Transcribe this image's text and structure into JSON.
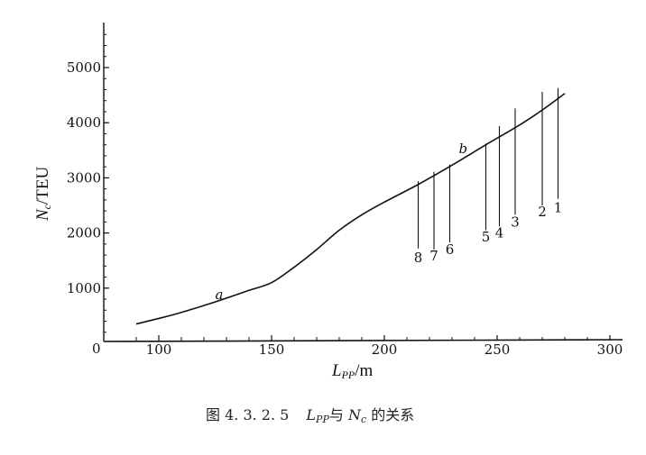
{
  "chart_data": {
    "type": "line",
    "caption_prefix": "图 4. 3. 2. 5",
    "caption_lpp": "L",
    "caption_lpp_sub": "PP",
    "caption_mid": "与",
    "caption_nc": "N",
    "caption_nc_sub": "c",
    "caption_suffix": "的关系",
    "xlabel_main": "L",
    "xlabel_sub": "PP",
    "xlabel_unit": "/m",
    "ylabel_main": "N",
    "ylabel_sub": "c",
    "ylabel_unit": "/TEU",
    "origin_label": "0",
    "xticks": [
      "100",
      "150",
      "200",
      "250",
      "300"
    ],
    "xtick_values": [
      100,
      150,
      200,
      250,
      300
    ],
    "yticks": [
      "1000",
      "2000",
      "3000",
      "4000",
      "5000"
    ],
    "ytick_values": [
      1000,
      2000,
      3000,
      4000,
      5000
    ],
    "xlim": [
      80,
      310
    ],
    "ylim": [
      0,
      5800
    ],
    "grid": false,
    "series": [
      {
        "name": "curve",
        "x": [
          90,
          100,
          110,
          125,
          140,
          150,
          160,
          170,
          180,
          190,
          200,
          215,
          230,
          245,
          260,
          270,
          280
        ],
        "y": [
          350,
          450,
          560,
          750,
          960,
          1100,
          1380,
          1700,
          2050,
          2330,
          2560,
          2880,
          3230,
          3600,
          3960,
          4230,
          4530
        ]
      }
    ],
    "curve_labels": [
      {
        "text": "a",
        "x": 125,
        "y": 800
      },
      {
        "text": "b",
        "x": 233,
        "y": 3450
      }
    ],
    "ship_markers": [
      {
        "label": "8",
        "x": 215,
        "top": 2940,
        "bottom": 1720,
        "label_y": 1470
      },
      {
        "label": "7",
        "x": 222,
        "top": 3110,
        "bottom": 1700,
        "label_y": 1500
      },
      {
        "label": "6",
        "x": 229,
        "top": 3240,
        "bottom": 1830,
        "label_y": 1620
      },
      {
        "label": "5",
        "x": 245,
        "top": 3620,
        "bottom": 2050,
        "label_y": 1850
      },
      {
        "label": "4",
        "x": 251,
        "top": 3940,
        "bottom": 2120,
        "label_y": 1920
      },
      {
        "label": "3",
        "x": 258,
        "top": 4260,
        "bottom": 2330,
        "label_y": 2120
      },
      {
        "label": "2",
        "x": 270,
        "top": 4560,
        "bottom": 2500,
        "label_y": 2300
      },
      {
        "label": "1",
        "x": 277,
        "top": 4630,
        "bottom": 2620,
        "label_y": 2380
      }
    ],
    "colors": {
      "ink": "#111111"
    }
  }
}
